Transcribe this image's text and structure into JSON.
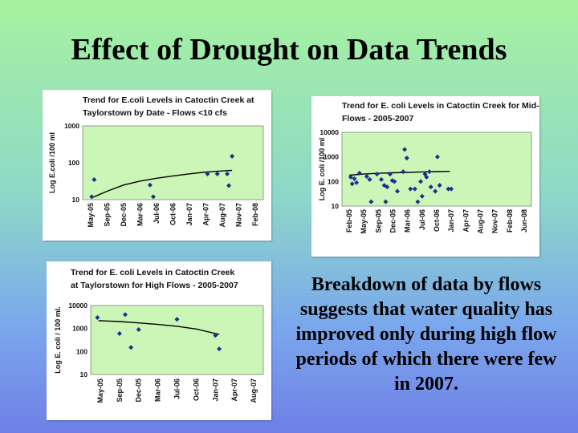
{
  "slide": {
    "title": "Effect of Drought on Data Trends",
    "caption": "Breakdown of data by flows suggests that water quality has improved only during high flow periods of which there were few in 2007."
  },
  "colors": {
    "plot_bg": "#ccf5b8",
    "marker": "#1c2f8c",
    "trend": "#000000"
  },
  "chart_data": [
    {
      "type": "scatter",
      "title_lines": [
        "Trend for E.coli Levels in Catoctin Creek at",
        "Taylorstown by Date - Flows <10 cfs"
      ],
      "ylabel": "Log E.coli /100 ml",
      "yscale": "log",
      "ylim": [
        10,
        1000
      ],
      "y_ticks": [
        "10",
        "100",
        "1000"
      ],
      "x_ticks": [
        "May-05",
        "Sep-05",
        "Dec-05",
        "Mar-06",
        "Jul-06",
        "Oct-06",
        "Jan-07",
        "Apr-07",
        "Aug-07",
        "Nov-07",
        "Feb-08"
      ],
      "points": [
        {
          "x": 1.05,
          "y": 12
        },
        {
          "x": 1.2,
          "y": 35
        },
        {
          "x": 4.6,
          "y": 25
        },
        {
          "x": 4.8,
          "y": 12
        },
        {
          "x": 8.1,
          "y": 50
        },
        {
          "x": 8.7,
          "y": 50
        },
        {
          "x": 9.3,
          "y": 50
        },
        {
          "x": 9.4,
          "y": 24
        },
        {
          "x": 9.6,
          "y": 150
        }
      ],
      "trend": [
        {
          "x": 1.0,
          "y": 11
        },
        {
          "x": 2,
          "y": 17
        },
        {
          "x": 3,
          "y": 25
        },
        {
          "x": 4,
          "y": 32
        },
        {
          "x": 5,
          "y": 38
        },
        {
          "x": 6,
          "y": 44
        },
        {
          "x": 7,
          "y": 50
        },
        {
          "x": 8,
          "y": 56
        },
        {
          "x": 9,
          "y": 60
        },
        {
          "x": 9.6,
          "y": 62
        }
      ]
    },
    {
      "type": "scatter",
      "title_lines": [
        "Trend for E. coli Levels in Catoctin Creek for Mid-",
        "Flows - 2005-2007"
      ],
      "ylabel": "Log E. coli /100 ml",
      "yscale": "log",
      "ylim": [
        10,
        10000
      ],
      "y_ticks": [
        "10",
        "100",
        "1000",
        "10000"
      ],
      "x_ticks": [
        "Feb-05",
        "May-05",
        "Sep-05",
        "Dec-05",
        "Mar-06",
        "Jul-06",
        "Oct-06",
        "Jan-07",
        "Apr-07",
        "Aug-07",
        "Nov-07",
        "Feb-08",
        "Jun-08"
      ],
      "points": [
        {
          "x": 1.1,
          "y": 150
        },
        {
          "x": 1.2,
          "y": 80
        },
        {
          "x": 1.35,
          "y": 130
        },
        {
          "x": 1.5,
          "y": 90
        },
        {
          "x": 1.7,
          "y": 220
        },
        {
          "x": 2.2,
          "y": 160
        },
        {
          "x": 2.4,
          "y": 120
        },
        {
          "x": 2.5,
          "y": 15
        },
        {
          "x": 2.9,
          "y": 200
        },
        {
          "x": 3.2,
          "y": 120
        },
        {
          "x": 3.4,
          "y": 70
        },
        {
          "x": 3.5,
          "y": 15
        },
        {
          "x": 3.6,
          "y": 60
        },
        {
          "x": 3.8,
          "y": 200
        },
        {
          "x": 3.95,
          "y": 110
        },
        {
          "x": 4.1,
          "y": 100
        },
        {
          "x": 4.3,
          "y": 40
        },
        {
          "x": 4.7,
          "y": 250
        },
        {
          "x": 4.8,
          "y": 2000
        },
        {
          "x": 4.95,
          "y": 900
        },
        {
          "x": 5.2,
          "y": 50
        },
        {
          "x": 5.5,
          "y": 50
        },
        {
          "x": 5.7,
          "y": 15
        },
        {
          "x": 5.9,
          "y": 100
        },
        {
          "x": 6.0,
          "y": 25
        },
        {
          "x": 6.2,
          "y": 200
        },
        {
          "x": 6.3,
          "y": 150
        },
        {
          "x": 6.5,
          "y": 250
        },
        {
          "x": 6.6,
          "y": 60
        },
        {
          "x": 6.9,
          "y": 40
        },
        {
          "x": 7.05,
          "y": 1000
        },
        {
          "x": 7.2,
          "y": 70
        },
        {
          "x": 7.8,
          "y": 50
        },
        {
          "x": 8.0,
          "y": 50
        }
      ],
      "trend": [
        {
          "x": 1.0,
          "y": 180
        },
        {
          "x": 2,
          "y": 200
        },
        {
          "x": 3,
          "y": 215
        },
        {
          "x": 4,
          "y": 225
        },
        {
          "x": 5,
          "y": 235
        },
        {
          "x": 6,
          "y": 245
        },
        {
          "x": 7,
          "y": 252
        },
        {
          "x": 7.9,
          "y": 258
        }
      ]
    },
    {
      "type": "scatter",
      "title_lines": [
        "Trend for E. coli Levels in Catoctin Creek",
        "at Taylorstown for High Flows - 2005-2007"
      ],
      "ylabel": "Log E. coli / 100 ml.",
      "yscale": "log",
      "ylim": [
        10,
        10000
      ],
      "y_ticks": [
        "10",
        "100",
        "1000",
        "10000"
      ],
      "x_ticks": [
        "May-05",
        "Sep-05",
        "Dec-05",
        "Mar-06",
        "Jul-06",
        "Oct-06",
        "Jan-07",
        "Apr-07",
        "Aug-07"
      ],
      "points": [
        {
          "x": 0.85,
          "y": 3000
        },
        {
          "x": 2.0,
          "y": 600
        },
        {
          "x": 2.3,
          "y": 4000
        },
        {
          "x": 2.6,
          "y": 150
        },
        {
          "x": 3.0,
          "y": 900
        },
        {
          "x": 5.0,
          "y": 2500
        },
        {
          "x": 7.0,
          "y": 500
        },
        {
          "x": 7.2,
          "y": 130
        }
      ],
      "trend": [
        {
          "x": 0.9,
          "y": 2200
        },
        {
          "x": 2,
          "y": 2000
        },
        {
          "x": 3,
          "y": 1750
        },
        {
          "x": 4,
          "y": 1500
        },
        {
          "x": 5,
          "y": 1250
        },
        {
          "x": 6,
          "y": 950
        },
        {
          "x": 7.2,
          "y": 550
        }
      ]
    }
  ]
}
